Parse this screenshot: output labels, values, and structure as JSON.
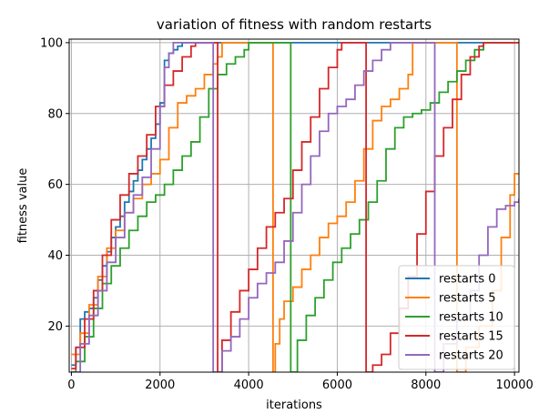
{
  "chart_data": {
    "type": "line",
    "title": "variation of fitness with random restarts",
    "xlabel": "iterations",
    "ylabel": "fitness value",
    "xlim": [
      -50,
      10100
    ],
    "ylim": [
      7,
      101
    ],
    "xticks": [
      0,
      2000,
      4000,
      6000,
      8000,
      10000
    ],
    "yticks": [
      20,
      40,
      60,
      80,
      100
    ],
    "grid": true,
    "legend_position": "bottom-right",
    "series": [
      {
        "name": "restarts 0",
        "color": "#1f77b4",
        "points": [
          [
            0,
            9
          ],
          [
            100,
            14
          ],
          [
            200,
            22
          ],
          [
            300,
            24
          ],
          [
            400,
            25
          ],
          [
            500,
            28
          ],
          [
            600,
            33
          ],
          [
            700,
            37
          ],
          [
            800,
            41
          ],
          [
            900,
            45
          ],
          [
            1000,
            48
          ],
          [
            1100,
            51
          ],
          [
            1200,
            55
          ],
          [
            1300,
            58
          ],
          [
            1400,
            61
          ],
          [
            1500,
            64
          ],
          [
            1600,
            67
          ],
          [
            1700,
            70
          ],
          [
            1800,
            73
          ],
          [
            1900,
            77
          ],
          [
            2000,
            83
          ],
          [
            2100,
            95
          ],
          [
            2200,
            97
          ],
          [
            2300,
            98
          ],
          [
            2400,
            99
          ],
          [
            2500,
            100
          ],
          [
            10000,
            100
          ]
        ]
      },
      {
        "name": "restarts 5",
        "color": "#ff7f0e",
        "points": [
          [
            0,
            12
          ],
          [
            200,
            18
          ],
          [
            400,
            26
          ],
          [
            600,
            34
          ],
          [
            800,
            42
          ],
          [
            1000,
            47
          ],
          [
            1200,
            52
          ],
          [
            1400,
            56
          ],
          [
            1600,
            60
          ],
          [
            1800,
            63
          ],
          [
            2000,
            67
          ],
          [
            2200,
            76
          ],
          [
            2400,
            83
          ],
          [
            2600,
            85
          ],
          [
            2800,
            87
          ],
          [
            3000,
            91
          ],
          [
            3200,
            94
          ],
          [
            3300,
            96
          ],
          [
            3400,
            100
          ],
          [
            4550,
            100
          ],
          [
            4550,
            7
          ],
          [
            4600,
            15
          ],
          [
            4700,
            22
          ],
          [
            4800,
            27
          ],
          [
            5000,
            31
          ],
          [
            5200,
            36
          ],
          [
            5400,
            40
          ],
          [
            5600,
            45
          ],
          [
            5800,
            49
          ],
          [
            6000,
            51
          ],
          [
            6200,
            55
          ],
          [
            6400,
            61
          ],
          [
            6600,
            70
          ],
          [
            6800,
            78
          ],
          [
            7000,
            82
          ],
          [
            7200,
            84
          ],
          [
            7400,
            87
          ],
          [
            7600,
            91
          ],
          [
            7700,
            100
          ],
          [
            8700,
            100
          ],
          [
            8700,
            7
          ],
          [
            8900,
            14
          ],
          [
            9200,
            20
          ],
          [
            9500,
            30
          ],
          [
            9700,
            45
          ],
          [
            9900,
            57
          ],
          [
            10000,
            63
          ],
          [
            10100,
            63
          ]
        ]
      },
      {
        "name": "restarts 10",
        "color": "#2ca02c",
        "points": [
          [
            0,
            7
          ],
          [
            100,
            10
          ],
          [
            300,
            17
          ],
          [
            500,
            25
          ],
          [
            700,
            32
          ],
          [
            900,
            37
          ],
          [
            1100,
            42
          ],
          [
            1300,
            47
          ],
          [
            1500,
            51
          ],
          [
            1700,
            55
          ],
          [
            1900,
            57
          ],
          [
            2100,
            60
          ],
          [
            2300,
            64
          ],
          [
            2500,
            68
          ],
          [
            2700,
            72
          ],
          [
            2900,
            79
          ],
          [
            3100,
            87
          ],
          [
            3300,
            91
          ],
          [
            3500,
            94
          ],
          [
            3700,
            96
          ],
          [
            3900,
            98
          ],
          [
            4000,
            100
          ],
          [
            4950,
            100
          ],
          [
            4950,
            7
          ],
          [
            5100,
            16
          ],
          [
            5300,
            23
          ],
          [
            5500,
            28
          ],
          [
            5700,
            33
          ],
          [
            5900,
            38
          ],
          [
            6100,
            42
          ],
          [
            6300,
            46
          ],
          [
            6500,
            50
          ],
          [
            6700,
            55
          ],
          [
            6900,
            61
          ],
          [
            7100,
            70
          ],
          [
            7300,
            76
          ],
          [
            7500,
            79
          ],
          [
            7700,
            80
          ],
          [
            7900,
            81
          ],
          [
            8100,
            83
          ],
          [
            8300,
            86
          ],
          [
            8500,
            89
          ],
          [
            8700,
            92
          ],
          [
            8900,
            95
          ],
          [
            9100,
            98
          ],
          [
            9300,
            100
          ],
          [
            10100,
            100
          ]
        ]
      },
      {
        "name": "restarts 15",
        "color": "#d62728",
        "points": [
          [
            0,
            8
          ],
          [
            100,
            14
          ],
          [
            300,
            22
          ],
          [
            500,
            30
          ],
          [
            700,
            40
          ],
          [
            900,
            50
          ],
          [
            1100,
            57
          ],
          [
            1300,
            63
          ],
          [
            1500,
            68
          ],
          [
            1700,
            74
          ],
          [
            1900,
            82
          ],
          [
            2100,
            88
          ],
          [
            2300,
            92
          ],
          [
            2500,
            96
          ],
          [
            2700,
            99
          ],
          [
            2800,
            100
          ],
          [
            3300,
            100
          ],
          [
            3300,
            7
          ],
          [
            3400,
            16
          ],
          [
            3600,
            24
          ],
          [
            3800,
            30
          ],
          [
            4000,
            36
          ],
          [
            4200,
            42
          ],
          [
            4400,
            48
          ],
          [
            4600,
            52
          ],
          [
            4800,
            56
          ],
          [
            5000,
            64
          ],
          [
            5200,
            72
          ],
          [
            5400,
            79
          ],
          [
            5600,
            87
          ],
          [
            5800,
            93
          ],
          [
            6000,
            98
          ],
          [
            6100,
            100
          ],
          [
            6650,
            100
          ],
          [
            6650,
            7
          ],
          [
            6800,
            9
          ],
          [
            7000,
            12
          ],
          [
            7200,
            18
          ],
          [
            7400,
            25
          ],
          [
            7600,
            34
          ],
          [
            7800,
            46
          ],
          [
            8000,
            58
          ],
          [
            8200,
            68
          ],
          [
            8400,
            76
          ],
          [
            8600,
            84
          ],
          [
            8800,
            91
          ],
          [
            9000,
            96
          ],
          [
            9200,
            99
          ],
          [
            9300,
            100
          ],
          [
            10100,
            100
          ]
        ]
      },
      {
        "name": "restarts 20",
        "color": "#9467bd",
        "points": [
          [
            0,
            7
          ],
          [
            200,
            15
          ],
          [
            400,
            23
          ],
          [
            600,
            30
          ],
          [
            800,
            38
          ],
          [
            1000,
            45
          ],
          [
            1200,
            52
          ],
          [
            1400,
            57
          ],
          [
            1600,
            62
          ],
          [
            1800,
            70
          ],
          [
            2000,
            82
          ],
          [
            2100,
            93
          ],
          [
            2200,
            97
          ],
          [
            2300,
            100
          ],
          [
            3200,
            100
          ],
          [
            3200,
            7
          ],
          [
            3400,
            13
          ],
          [
            3600,
            17
          ],
          [
            3800,
            22
          ],
          [
            4000,
            28
          ],
          [
            4200,
            32
          ],
          [
            4400,
            35
          ],
          [
            4600,
            38
          ],
          [
            4800,
            44
          ],
          [
            5000,
            52
          ],
          [
            5200,
            60
          ],
          [
            5400,
            68
          ],
          [
            5600,
            75
          ],
          [
            5800,
            80
          ],
          [
            6000,
            82
          ],
          [
            6200,
            84
          ],
          [
            6400,
            88
          ],
          [
            6600,
            92
          ],
          [
            6800,
            95
          ],
          [
            7000,
            98
          ],
          [
            7200,
            100
          ],
          [
            8200,
            100
          ],
          [
            8200,
            7
          ],
          [
            8400,
            15
          ],
          [
            8700,
            22
          ],
          [
            9000,
            30
          ],
          [
            9200,
            40
          ],
          [
            9400,
            48
          ],
          [
            9600,
            53
          ],
          [
            9800,
            54
          ],
          [
            10000,
            55
          ],
          [
            10100,
            56
          ]
        ]
      }
    ]
  }
}
